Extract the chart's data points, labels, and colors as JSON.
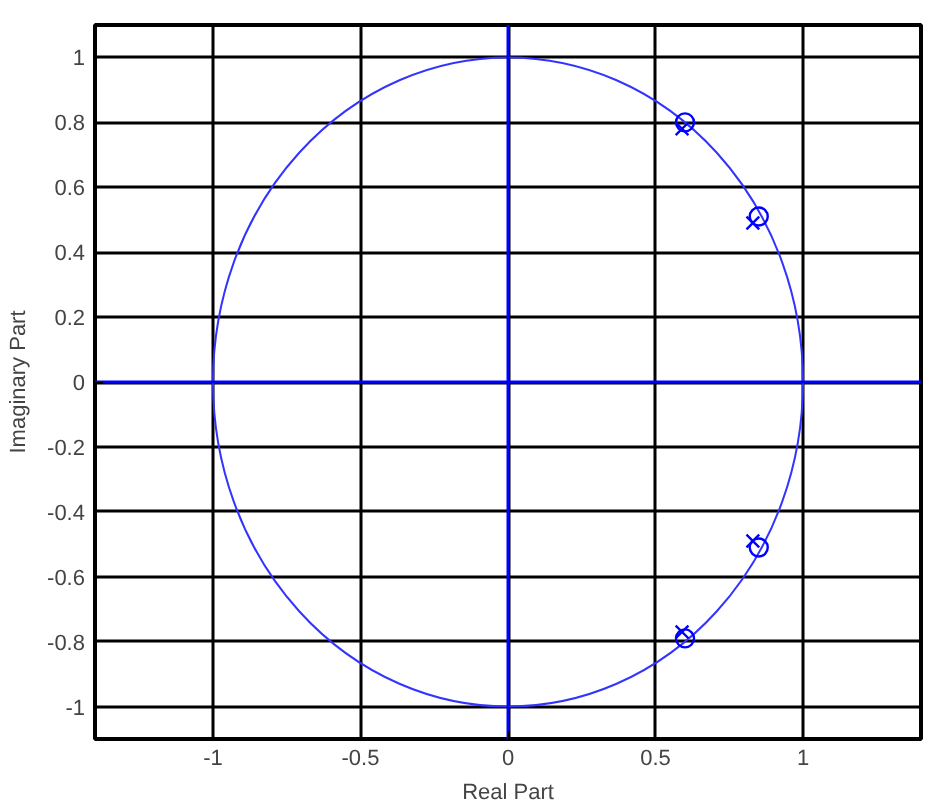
{
  "chart_data": {
    "type": "scatter",
    "xlabel": "Real Part",
    "ylabel": "Imaginary Part",
    "xlim": [
      -1.4,
      1.4
    ],
    "ylim": [
      -1.1,
      1.1
    ],
    "xticks": [
      -1,
      -0.5,
      0,
      0.5,
      1
    ],
    "yticks": [
      -1,
      -0.8,
      -0.6,
      -0.4,
      -0.2,
      0,
      0.2,
      0.4,
      0.6,
      0.8,
      1
    ],
    "grid": true,
    "series": [
      {
        "type": "line",
        "color": "#0000ff",
        "x": [
          -1.4,
          1.4
        ],
        "values": [
          0,
          0
        ]
      },
      {
        "type": "line",
        "color": "#0000ff",
        "x": [
          0,
          0
        ],
        "values": [
          -1.1,
          1.1
        ]
      },
      {
        "color": "#0000ff",
        "marker": "circle",
        "x": [
          0.6,
          0.85,
          0.85,
          0.6
        ],
        "values": [
          0.8,
          0.51,
          -0.51,
          -0.79
        ]
      },
      {
        "color": "#0000ff",
        "marker": "cross",
        "x": [
          0.59,
          0.83,
          0.83,
          0.59
        ],
        "values": [
          0.78,
          0.49,
          -0.49,
          -0.77
        ]
      }
    ]
  }
}
